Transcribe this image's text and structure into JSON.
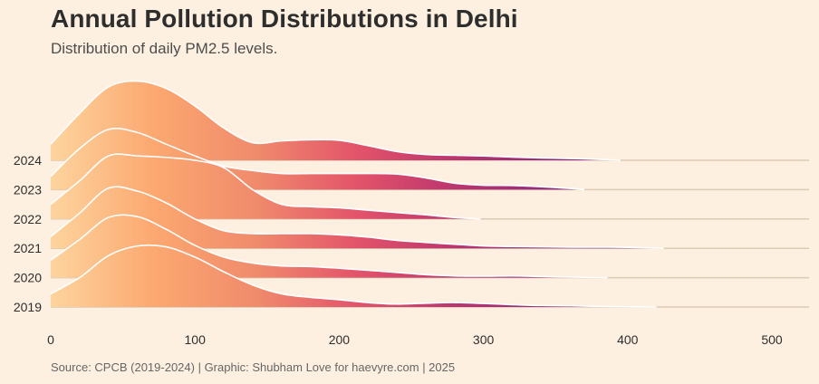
{
  "title": "Annual Pollution Distributions in Delhi",
  "subtitle": "Distribution of daily PM2.5 levels.",
  "caption": "Source: CPCB (2019-2024) | Graphic: Shubham Love for haevyre.com | 2025",
  "chart_data": {
    "type": "ridgeline",
    "title": "Annual Pollution Distributions in Delhi",
    "subtitle": "Distribution of daily PM2.5 levels.",
    "xlabel": "",
    "ylabel": "",
    "xlim": [
      0,
      525
    ],
    "xticks": [
      0,
      100,
      200,
      300,
      400,
      500
    ],
    "x_tick_labels": [
      "0",
      "100",
      "200",
      "300",
      "400",
      "500"
    ],
    "categories": [
      "2024",
      "2023",
      "2022",
      "2021",
      "2020",
      "2019"
    ],
    "density_scale_note": "relative density, in units of row spacing",
    "colormap": [
      "#fdd49e",
      "#fca870",
      "#f08a6c",
      "#e2526a",
      "#b8336f",
      "#8c2981",
      "#5b1876"
    ],
    "series": [
      {
        "name": "2024",
        "x": [
          0,
          20,
          40,
          60,
          80,
          100,
          120,
          140,
          160,
          180,
          200,
          220,
          240,
          260,
          280,
          300,
          320,
          340,
          360,
          380,
          395
        ],
        "density": [
          0.55,
          1.6,
          2.5,
          2.7,
          2.45,
          1.85,
          1.1,
          0.6,
          0.66,
          0.7,
          0.68,
          0.5,
          0.3,
          0.2,
          0.17,
          0.15,
          0.11,
          0.08,
          0.06,
          0.03,
          0.0
        ]
      },
      {
        "name": "2023",
        "x": [
          0,
          20,
          40,
          60,
          80,
          100,
          120,
          140,
          160,
          180,
          200,
          220,
          240,
          260,
          280,
          300,
          320,
          340,
          360,
          370
        ],
        "density": [
          0.45,
          1.4,
          2.05,
          1.95,
          1.55,
          1.15,
          0.8,
          0.65,
          0.55,
          0.55,
          0.55,
          0.55,
          0.53,
          0.4,
          0.22,
          0.15,
          0.14,
          0.1,
          0.04,
          0.0
        ]
      },
      {
        "name": "2022",
        "x": [
          0,
          20,
          40,
          60,
          80,
          100,
          120,
          140,
          160,
          180,
          200,
          220,
          240,
          260,
          280,
          298
        ],
        "density": [
          0.5,
          1.3,
          2.15,
          2.15,
          2.1,
          2.0,
          1.75,
          1.0,
          0.5,
          0.42,
          0.38,
          0.3,
          0.22,
          0.14,
          0.05,
          0.0
        ]
      },
      {
        "name": "2021",
        "x": [
          0,
          20,
          40,
          60,
          80,
          100,
          120,
          140,
          160,
          180,
          200,
          220,
          240,
          260,
          280,
          300,
          320,
          340,
          360,
          380,
          400,
          425
        ],
        "density": [
          0.4,
          1.2,
          2.05,
          1.95,
          1.55,
          1.0,
          0.6,
          0.5,
          0.5,
          0.5,
          0.46,
          0.38,
          0.27,
          0.2,
          0.14,
          0.08,
          0.06,
          0.05,
          0.04,
          0.04,
          0.03,
          0.0
        ]
      },
      {
        "name": "2020",
        "x": [
          0,
          20,
          40,
          60,
          80,
          100,
          120,
          140,
          160,
          180,
          200,
          220,
          240,
          260,
          280,
          300,
          320,
          340,
          360,
          386
        ],
        "density": [
          0.6,
          1.3,
          2.05,
          2.08,
          1.65,
          1.1,
          0.7,
          0.5,
          0.4,
          0.38,
          0.32,
          0.25,
          0.18,
          0.1,
          0.06,
          0.05,
          0.06,
          0.04,
          0.02,
          0.0
        ]
      },
      {
        "name": "2019",
        "x": [
          0,
          20,
          40,
          60,
          80,
          100,
          120,
          140,
          160,
          180,
          200,
          220,
          240,
          260,
          280,
          300,
          320,
          340,
          360,
          380,
          400,
          420
        ],
        "density": [
          0.45,
          1.0,
          1.75,
          2.08,
          2.05,
          1.7,
          1.2,
          0.75,
          0.45,
          0.33,
          0.25,
          0.15,
          0.1,
          0.13,
          0.15,
          0.12,
          0.08,
          0.05,
          0.04,
          0.02,
          0.01,
          0.0
        ]
      }
    ]
  }
}
